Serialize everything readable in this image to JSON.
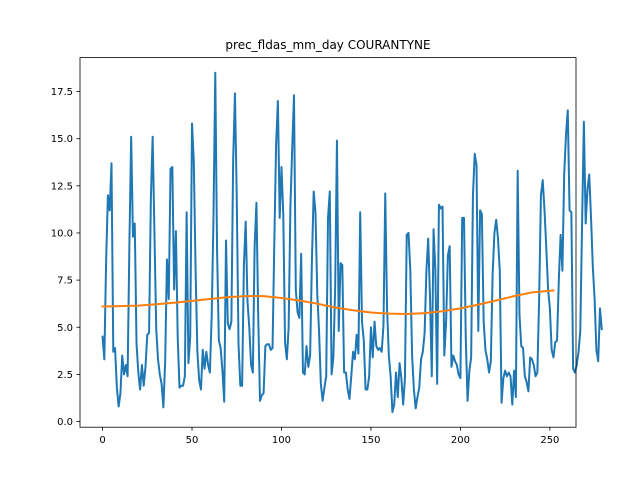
{
  "chart_data": {
    "type": "line",
    "title": "prec_fldas_mm_day COURANTYNE",
    "xlabel": "",
    "ylabel": "",
    "xlim": [
      -12.6,
      264.6
    ],
    "ylim": [
      -0.3,
      19.3
    ],
    "grid": false,
    "legend": "none",
    "x_ticks": [
      0,
      50,
      100,
      150,
      200,
      250
    ],
    "x_tick_labels": [
      "0",
      "50",
      "100",
      "150",
      "200",
      "250"
    ],
    "y_ticks": [
      0.0,
      2.5,
      5.0,
      7.5,
      10.0,
      12.5,
      15.0,
      17.5
    ],
    "y_tick_labels": [
      "0.0",
      "2.5",
      "5.0",
      "7.5",
      "10.0",
      "12.5",
      "15.0",
      "17.5"
    ],
    "series": [
      {
        "color": "#1f77b4",
        "values": [
          4.5,
          3.3,
          8.5,
          12.0,
          11.2,
          13.7,
          3.7,
          3.9,
          1.8,
          0.8,
          1.5,
          3.5,
          2.5,
          3.0,
          2.4,
          9.4,
          15.1,
          9.8,
          10.5,
          4.1,
          2.6,
          1.7,
          3.0,
          1.9,
          2.9,
          4.6,
          4.7,
          11.8,
          15.1,
          10.0,
          4.9,
          3.3,
          2.5,
          2.0,
          0.75,
          3.2,
          8.6,
          6.5,
          13.4,
          13.5,
          7.0,
          10.1,
          4.5,
          1.8,
          1.9,
          1.9,
          2.4,
          11.1,
          3.1,
          4.5,
          15.8,
          13.8,
          8.0,
          3.7,
          2.2,
          1.7,
          3.8,
          2.8,
          3.7,
          3.0,
          2.6,
          5.6,
          10.8,
          18.5,
          9.1,
          4.3,
          3.9,
          2.7,
          1.05,
          9.6,
          5.2,
          4.9,
          5.3,
          13.9,
          17.4,
          11.9,
          4.1,
          1.9,
          1.9,
          8.3,
          10.6,
          6.4,
          5.0,
          3.0,
          2.6,
          9.3,
          11.6,
          5.6,
          1.1,
          1.4,
          1.5,
          4.0,
          4.1,
          4.1,
          3.8,
          3.9,
          9.5,
          14.7,
          17.0,
          10.8,
          13.5,
          11.0,
          4.2,
          3.3,
          5.0,
          11.4,
          14.5,
          17.3,
          7.0,
          5.8,
          5.5,
          8.9,
          2.6,
          2.5,
          4.0,
          2.9,
          3.5,
          8.5,
          12.2,
          11.1,
          6.8,
          4.8,
          2.0,
          1.1,
          1.8,
          2.4,
          10.8,
          12.2,
          2.5,
          3.4,
          7.1,
          14.9,
          4.8,
          8.4,
          8.3,
          2.6,
          2.6,
          1.7,
          1.2,
          2.4,
          3.7,
          3.3,
          4.6,
          3.6,
          11.1,
          5.3,
          4.3,
          1.7,
          1.7,
          2.4,
          5.0,
          3.4,
          5.3,
          4.0,
          3.8,
          3.9,
          3.7,
          5.1,
          12.1,
          6.0,
          3.5,
          2.4,
          0.5,
          0.9,
          2.6,
          1.3,
          3.1,
          2.3,
          0.9,
          2.3,
          9.9,
          10.0,
          8.0,
          3.5,
          1.7,
          0.7,
          1.3,
          1.8,
          3.3,
          3.7,
          4.7,
          8.0,
          9.7,
          6.6,
          2.4,
          10.2,
          8.0,
          2.0,
          11.5,
          11.3,
          11.4,
          3.5,
          5.3,
          8.8,
          9.3,
          2.9,
          3.5,
          3.2,
          3.0,
          2.5,
          2.3,
          10.8,
          10.8,
          4.4,
          1.1,
          2.7,
          3.4,
          12.0,
          14.2,
          13.6,
          4.8,
          11.2,
          11.0,
          5.3,
          3.8,
          3.3,
          2.6,
          3.2,
          7.8,
          10.0,
          10.7,
          9.7,
          8.0,
          1.0,
          2.3,
          2.7,
          2.4,
          2.6,
          2.4,
          0.9,
          2.7,
          1.3,
          13.3,
          5.7,
          4.0,
          3.9,
          2.4,
          2.1,
          1.6,
          3.4,
          3.3,
          3.0,
          2.4,
          2.6,
          6.5,
          12.0,
          12.8,
          11.2,
          9.2,
          7.0,
          6.0,
          3.8,
          3.4,
          4.2,
          4.3,
          7.5,
          9.9,
          8.0,
          13.1,
          15.2,
          16.5,
          11.2,
          11.1,
          2.8,
          2.6,
          3.0,
          3.7,
          4.8,
          10.5,
          15.9,
          10.5,
          12.3,
          13.1,
          10.8,
          8.2,
          6.5,
          3.8,
          3.2,
          6.0,
          4.9
        ]
      },
      {
        "color": "#ff7f0e",
        "x": [
          0,
          10,
          20,
          30,
          40,
          50,
          60,
          70,
          80,
          90,
          100,
          110,
          120,
          130,
          140,
          150,
          160,
          170,
          180,
          190,
          200,
          210,
          220,
          230,
          240,
          252
        ],
        "values": [
          6.1,
          6.12,
          6.15,
          6.22,
          6.3,
          6.4,
          6.5,
          6.6,
          6.65,
          6.65,
          6.55,
          6.42,
          6.25,
          6.05,
          5.9,
          5.78,
          5.72,
          5.7,
          5.75,
          5.85,
          6.0,
          6.2,
          6.42,
          6.65,
          6.85,
          6.95
        ]
      }
    ]
  }
}
